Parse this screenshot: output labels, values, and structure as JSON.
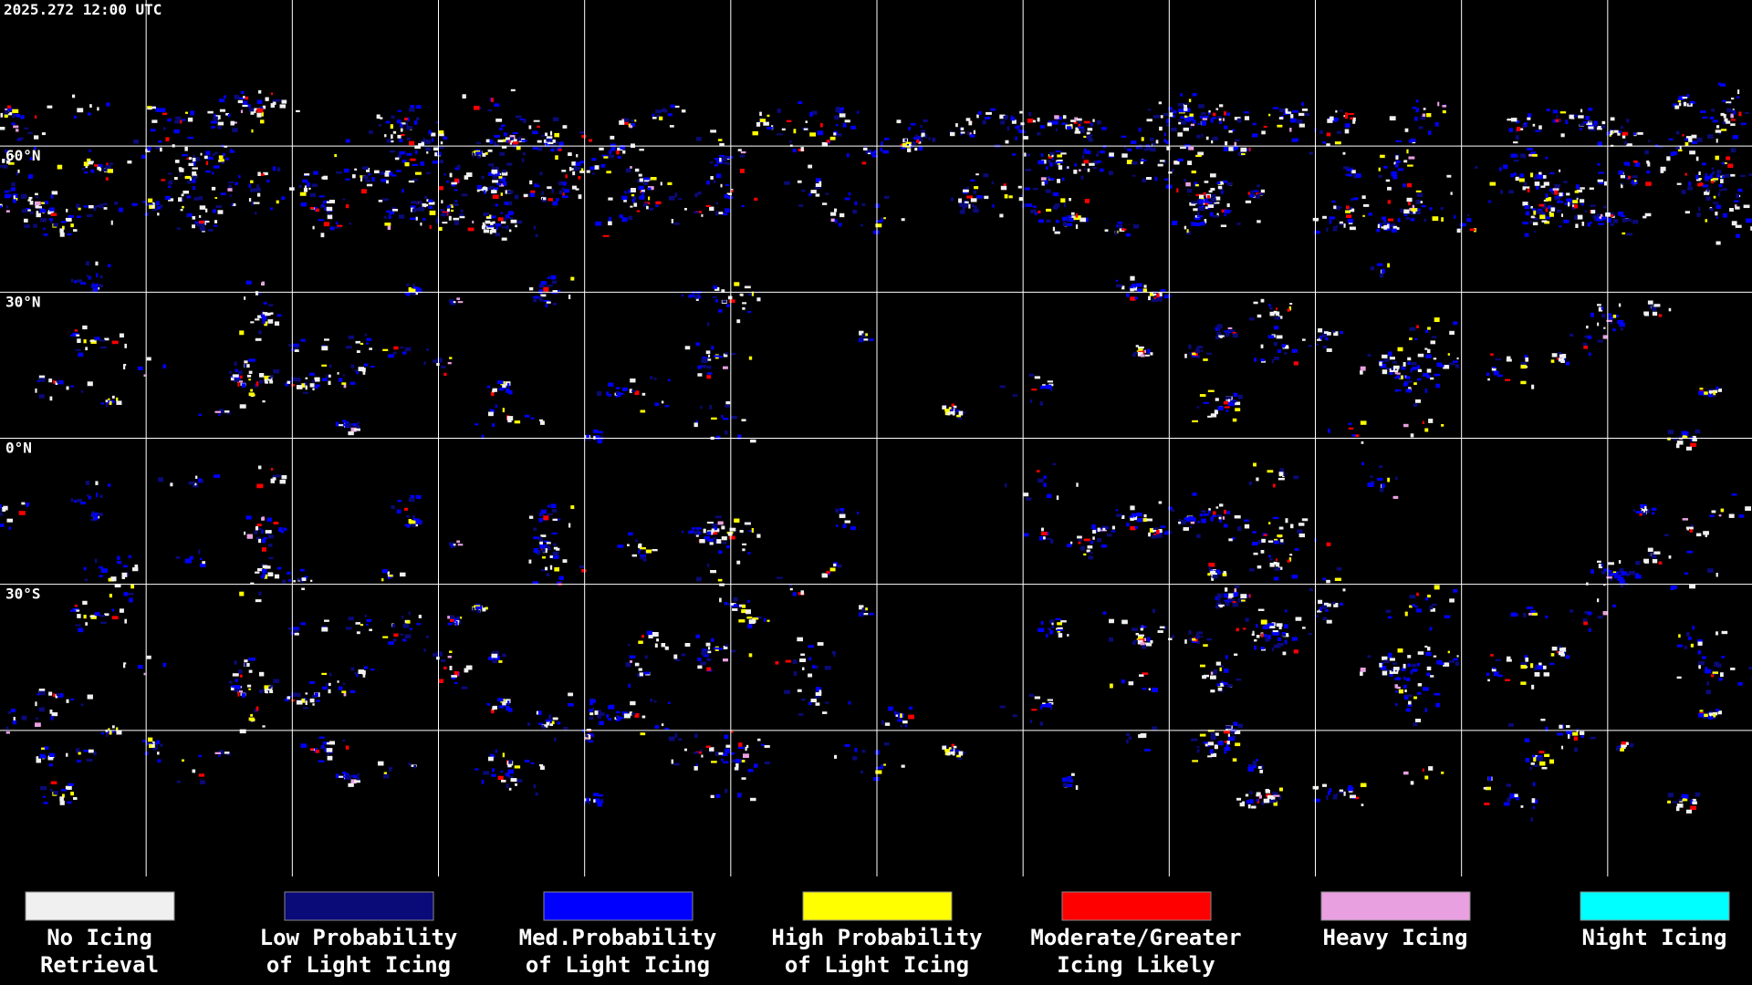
{
  "timestamp": "2025.272 12:00 UTC",
  "latitude_labels": [
    "60°N",
    "30°N",
    "0°N",
    "30°S"
  ],
  "legend": [
    {
      "label": [
        "No Icing",
        "Retrieval"
      ],
      "color": "#f0f0f0"
    },
    {
      "label": [
        "Low Probability",
        "of Light Icing"
      ],
      "color": "#0a0a78"
    },
    {
      "label": [
        "Med.Probability",
        "of Light Icing"
      ],
      "color": "#0000ff"
    },
    {
      "label": [
        "High Probability",
        "of Light Icing"
      ],
      "color": "#ffff00"
    },
    {
      "label": [
        "Moderate/Greater",
        "Icing Likely"
      ],
      "color": "#ff0000"
    },
    {
      "label": [
        "Heavy Icing"
      ],
      "color": "#e8a0e0"
    },
    {
      "label": [
        "Night Icing"
      ],
      "color": "#00ffff"
    }
  ]
}
